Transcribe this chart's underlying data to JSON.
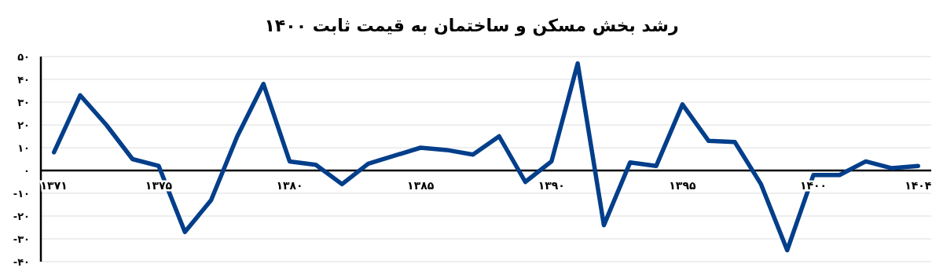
{
  "chart_data": {
    "type": "line",
    "title": "رشد بخش مسکن و ساختمان به قیمت ثابت ۱۴۰۰",
    "x": [
      1371,
      1372,
      1373,
      1374,
      1375,
      1376,
      1377,
      1378,
      1379,
      1380,
      1381,
      1382,
      1383,
      1384,
      1385,
      1386,
      1387,
      1388,
      1389,
      1390,
      1391,
      1392,
      1393,
      1394,
      1395,
      1396,
      1397,
      1398,
      1399,
      1400,
      1401,
      1402,
      1403,
      1404
    ],
    "series": [
      {
        "color": "#023e8a",
        "values": [
          8,
          33,
          20,
          5,
          2,
          -27,
          -13,
          15,
          38,
          4,
          2.5,
          -6,
          3,
          6.5,
          10,
          9,
          7,
          15,
          -5,
          4,
          47,
          -24,
          3.5,
          2,
          29,
          13,
          12.5,
          -6,
          -35,
          -2,
          -2,
          4,
          1,
          2
        ]
      }
    ],
    "xlim": [
      1370.5,
      1404.5
    ],
    "xticks": [
      {
        "value": 1371,
        "label": "۱۳۷۱"
      },
      {
        "value": 1375,
        "label": "۱۳۷۵"
      },
      {
        "value": 1380,
        "label": "۱۳۸۰"
      },
      {
        "value": 1385,
        "label": "۱۳۸۵"
      },
      {
        "value": 1390,
        "label": "۱۳۹۰"
      },
      {
        "value": 1395,
        "label": "۱۳۹۵"
      },
      {
        "value": 1400,
        "label": "۱۴۰۰"
      },
      {
        "value": 1404,
        "label": "۱۴۰۴"
      }
    ],
    "ylim": [
      -40,
      50
    ],
    "yticks": [
      {
        "value": 50,
        "label": "۵۰"
      },
      {
        "value": 40,
        "label": "۴۰"
      },
      {
        "value": 30,
        "label": "۳۰"
      },
      {
        "value": 20,
        "label": "۲۰"
      },
      {
        "value": 10,
        "label": "۱۰"
      },
      {
        "value": 0,
        "label": "۰"
      },
      {
        "value": -10,
        "label": "-۱۰"
      },
      {
        "value": -20,
        "label": "-۲۰"
      },
      {
        "value": -30,
        "label": "-۳۰"
      },
      {
        "value": -40,
        "label": "-۴۰"
      }
    ],
    "grid": "y",
    "marker": "none",
    "line_style": "solid"
  }
}
